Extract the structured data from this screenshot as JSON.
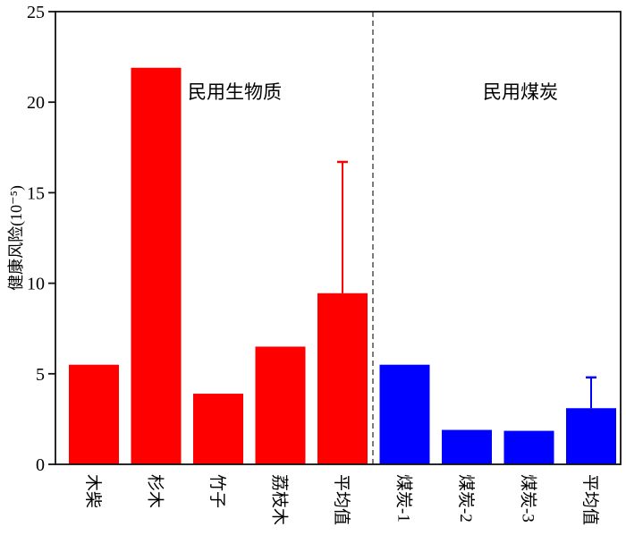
{
  "chart_data": {
    "type": "bar",
    "ylabel": "健康风险(10⁻⁵)",
    "ylabel_base": "健康风险(10",
    "ylabel_exp": "-5",
    "ylabel_close": ")",
    "ylim": [
      0,
      25
    ],
    "yticks": [
      0,
      5,
      10,
      15,
      20,
      25
    ],
    "grid": false,
    "categories": [
      "木柴",
      "杉木",
      "竹子",
      "荔枝木",
      "平均值",
      "煤炭-1",
      "煤炭-2",
      "煤炭-3",
      "平均值"
    ],
    "values": [
      5.5,
      21.9,
      3.9,
      6.5,
      9.45,
      5.5,
      1.9,
      1.85,
      3.1
    ],
    "error_upper": [
      null,
      null,
      null,
      null,
      16.7,
      null,
      null,
      null,
      4.8
    ],
    "bar_colors": [
      "#ff0000",
      "#ff0000",
      "#ff0000",
      "#ff0000",
      "#ff0000",
      "#0000ff",
      "#0000ff",
      "#0000ff",
      "#0000ff"
    ],
    "groups": [
      {
        "label": "民用生物质",
        "color": "#ff0000"
      },
      {
        "label": "民用煤炭",
        "color": "#0000ff"
      }
    ],
    "separator": "dashed line between 平均值 and 煤炭-1"
  }
}
